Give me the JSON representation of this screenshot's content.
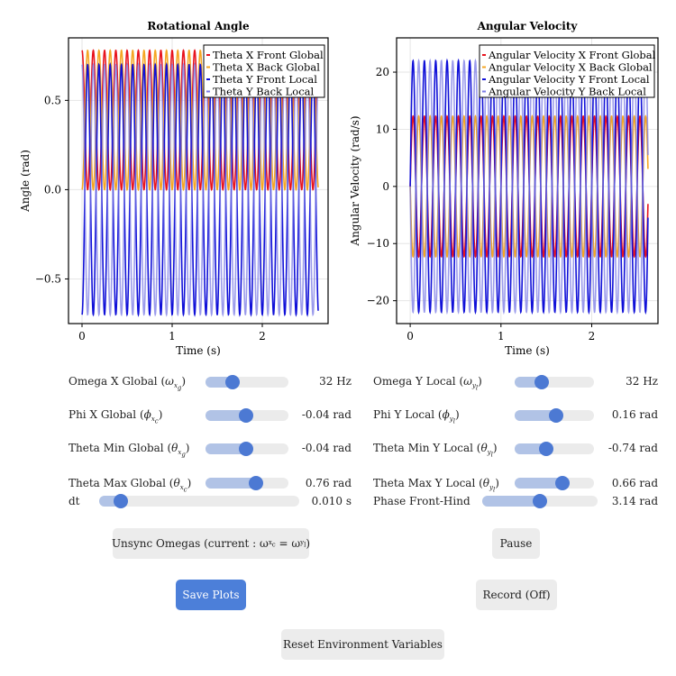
{
  "plots": [
    {
      "title": "Rotational Angle",
      "xlabel": "Time (s)",
      "ylabel": "Angle (rad)",
      "xticks": [
        "0",
        "1",
        "2"
      ],
      "yticks": [
        {
          "v": 0.5,
          "label": "0.5"
        },
        {
          "v": 0.0,
          "label": "0.0"
        },
        {
          "v": -0.5,
          "label": "−0.5"
        }
      ],
      "ylim": [
        -0.75,
        0.85
      ],
      "xlim": [
        -0.15,
        2.73
      ],
      "legend": [
        {
          "label": "Theta X Front Global",
          "color": "#e8141e"
        },
        {
          "label": "Theta X Back Global",
          "color": "#f5a623"
        },
        {
          "label": "Theta Y Front Local",
          "color": "#1010d8"
        },
        {
          "label": "Theta Y Back Local",
          "color": "#7a7ae6"
        }
      ]
    },
    {
      "title": "Angular Velocity",
      "xlabel": "Time (s)",
      "ylabel": "Angular Velocity (rad/s)",
      "xticks": [
        "0",
        "1",
        "2"
      ],
      "yticks": [
        {
          "v": 20,
          "label": "20"
        },
        {
          "v": 10,
          "label": "10"
        },
        {
          "v": 0,
          "label": "0"
        },
        {
          "v": -10,
          "label": "−10"
        },
        {
          "v": -20,
          "label": "−20"
        }
      ],
      "ylim": [
        -24,
        26
      ],
      "xlim": [
        -0.15,
        2.73
      ],
      "legend": [
        {
          "label": "Angular Velocity X Front Global",
          "color": "#e8141e"
        },
        {
          "label": "Angular Velocity X Back Global",
          "color": "#f5a623"
        },
        {
          "label": "Angular Velocity Y Front Local",
          "color": "#1010d8"
        },
        {
          "label": "Angular Velocity Y Back Local",
          "color": "#7a7ae6"
        }
      ]
    }
  ],
  "controls": {
    "omega_x": {
      "label": "Omega X Global",
      "sym": "ω",
      "sub": "x",
      "value": "32 Hz",
      "fraction": 0.33
    },
    "phi_x": {
      "label": "Phi X Global",
      "sym": "ϕ",
      "sub": "x",
      "value": "-0.04 rad",
      "fraction": 0.49
    },
    "theta_min_x": {
      "label": "Theta Min Global",
      "sym": "θ",
      "sub": "x",
      "value": "-0.04 rad",
      "fraction": 0.49
    },
    "theta_max_x": {
      "label": "Theta Max Global",
      "sym": "θ",
      "sub": "x",
      "value": "0.76 rad",
      "fraction": 0.61
    },
    "dt": {
      "label": "dt",
      "value": "0.010 s",
      "fraction": 0.11
    },
    "omega_y": {
      "label": "Omega Y Local",
      "sym": "ω",
      "sub": "y",
      "value": "32 Hz",
      "fraction": 0.34
    },
    "phi_y": {
      "label": "Phi Y Local",
      "sym": "ϕ",
      "sub": "y",
      "value": "0.16 rad",
      "fraction": 0.52
    },
    "theta_min_y": {
      "label": "Theta Min Y Local",
      "sym": "θ",
      "sub": "y",
      "value": "-0.74 rad",
      "fraction": 0.4
    },
    "theta_max_y": {
      "label": "Theta Max Y Local",
      "sym": "θ",
      "sub": "y",
      "value": "0.66 rad",
      "fraction": 0.6
    },
    "phase": {
      "label": "Phase Front-Hind",
      "value": "3.14 rad",
      "fraction": 0.5
    }
  },
  "buttons": {
    "unsync": "Unsync Omegas (current : ω",
    "pause": "Pause",
    "save": "Save Plots",
    "record": "Record (Off)",
    "reset": "Reset Environment Variables"
  },
  "colors": {
    "accent": "#4c7fd9",
    "fill": "#b1c3e6",
    "track": "#ebebeb"
  }
}
